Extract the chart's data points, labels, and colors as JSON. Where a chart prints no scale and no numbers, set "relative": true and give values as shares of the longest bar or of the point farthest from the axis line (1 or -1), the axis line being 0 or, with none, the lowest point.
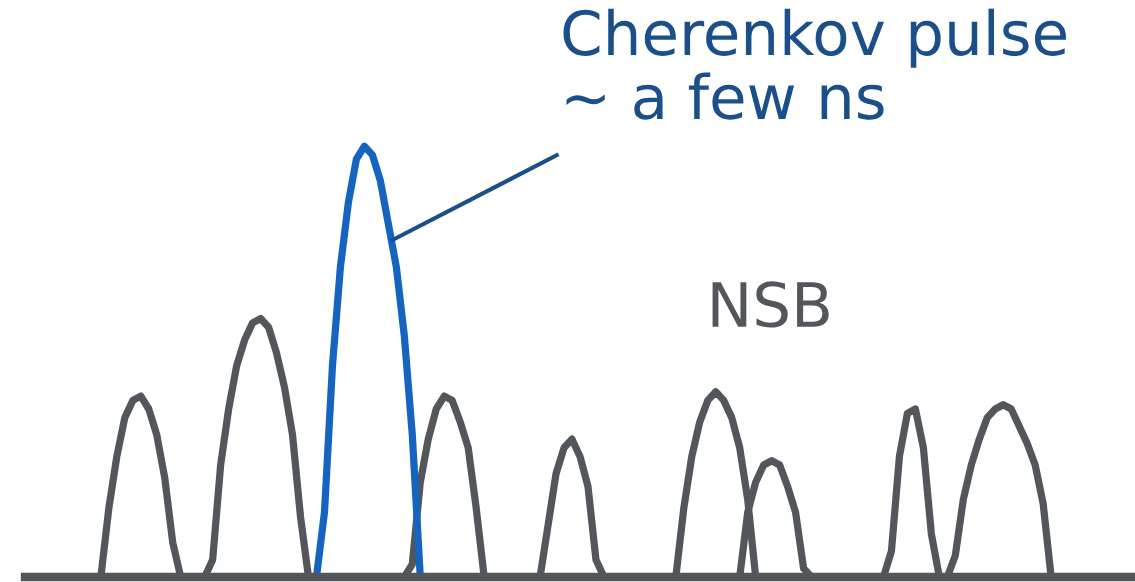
{
  "chart_data": {
    "type": "line",
    "relative": true,
    "categories": [
      null,
      null,
      null,
      null,
      null,
      null,
      null,
      null,
      null,
      null,
      null,
      null,
      null,
      null,
      null,
      null,
      null,
      null,
      null,
      null,
      null,
      null,
      null,
      null,
      null,
      null,
      null,
      null,
      null,
      null,
      null,
      null,
      null,
      null,
      null,
      null,
      null,
      null,
      null,
      null,
      null,
      null,
      null,
      null,
      null,
      null,
      null,
      null,
      null,
      null,
      null,
      null,
      null,
      null,
      null,
      null,
      null,
      null,
      null,
      null,
      null,
      null,
      null,
      null,
      null,
      null,
      null,
      null,
      null,
      null,
      null,
      null,
      null,
      null,
      null,
      null,
      null,
      null,
      null,
      null,
      null,
      null,
      null,
      null,
      null,
      null,
      null,
      null,
      null,
      null,
      null,
      null,
      null,
      null,
      null,
      null,
      null,
      null,
      null,
      null,
      null,
      null,
      null,
      null,
      null,
      null,
      null,
      null,
      null,
      null,
      null,
      null,
      null,
      null,
      null,
      null,
      null,
      null,
      null,
      null,
      null,
      null,
      null,
      null,
      null,
      null,
      null,
      null,
      null,
      null,
      null,
      null,
      null,
      null,
      null,
      null,
      null,
      null,
      null
    ],
    "series": [
      {
        "color": "#53575c",
        "values": [
          0,
          0,
          0,
          0,
          0,
          0,
          0,
          0,
          0,
          0,
          0.16,
          0.28,
          0.37,
          0.41,
          0.42,
          0.39,
          0.33,
          0.23,
          0.08,
          0,
          0,
          0,
          0,
          0.04,
          0.26,
          0.39,
          0.49,
          0.55,
          0.59,
          0.6,
          0.58,
          0.52,
          0.44,
          0.33,
          0.14,
          0,
          0,
          0,
          0,
          0,
          0,
          0,
          0,
          0,
          0,
          0,
          0,
          0,
          0.03,
          0.22,
          0.32,
          0.39,
          0.42,
          0.41,
          0.36,
          0.3,
          0.16,
          0,
          0,
          0,
          0,
          0,
          0,
          0,
          0,
          0.12,
          0.24,
          0.3,
          0.32,
          0.28,
          0.21,
          0.04,
          0,
          0,
          0,
          0,
          0,
          0,
          0,
          0,
          0,
          0,
          0.16,
          0.28,
          0.36,
          0.41,
          0.43,
          0.41,
          0.37,
          0.3,
          0.18,
          0,
          0,
          0,
          0,
          0,
          0,
          0,
          0,
          0,
          0,
          0,
          0,
          0,
          0,
          0,
          0,
          0,
          0.06,
          0.28,
          0.38,
          0.39,
          0.3,
          0.1,
          0,
          0,
          0.05,
          0.18,
          0.26,
          0.32,
          0.37,
          0.39,
          0.4,
          0.39,
          0.35,
          0.31,
          0.26,
          0.17,
          0,
          0,
          0,
          0,
          0,
          0,
          0,
          0,
          0,
          0,
          0
        ]
      },
      {
        "color": "#53575c",
        "values": [
          null,
          null,
          null,
          null,
          null,
          null,
          null,
          null,
          null,
          null,
          null,
          null,
          null,
          null,
          null,
          null,
          null,
          null,
          null,
          null,
          null,
          null,
          null,
          null,
          null,
          null,
          null,
          null,
          null,
          null,
          null,
          null,
          null,
          null,
          null,
          null,
          null,
          null,
          null,
          null,
          null,
          null,
          null,
          null,
          null,
          null,
          null,
          null,
          null,
          null,
          null,
          null,
          null,
          null,
          null,
          null,
          null,
          null,
          null,
          null,
          null,
          null,
          null,
          null,
          null,
          null,
          null,
          null,
          null,
          null,
          null,
          null,
          null,
          null,
          null,
          null,
          null,
          null,
          null,
          null,
          null,
          null,
          null,
          null,
          null,
          null,
          null,
          null,
          null,
          0,
          0.15,
          0.22,
          0.26,
          0.27,
          0.26,
          0.21,
          0.15,
          0.02,
          0,
          null,
          null,
          null,
          null,
          null,
          null,
          null,
          null,
          null,
          null,
          null,
          null,
          null,
          null,
          null,
          null,
          null,
          null,
          null,
          null,
          null,
          null,
          null,
          null,
          null,
          null,
          null,
          null,
          null,
          null,
          null,
          null,
          null,
          null,
          null,
          null,
          null,
          null,
          null,
          null
        ]
      },
      {
        "color": "#1565c0",
        "values": [
          null,
          null,
          null,
          null,
          null,
          null,
          null,
          null,
          null,
          null,
          null,
          null,
          null,
          null,
          null,
          null,
          null,
          null,
          null,
          null,
          null,
          null,
          null,
          null,
          null,
          null,
          null,
          null,
          null,
          null,
          null,
          null,
          null,
          null,
          null,
          null,
          0,
          0.15,
          0.49,
          0.72,
          0.87,
          0.97,
          1,
          0.98,
          0.92,
          0.82,
          0.72,
          0.56,
          0.33,
          0,
          null,
          null,
          null,
          null,
          null,
          null,
          null,
          null,
          null,
          null,
          null,
          null,
          null,
          null,
          null,
          null,
          null,
          null,
          null,
          null,
          null,
          null,
          null,
          null,
          null,
          null,
          null,
          null,
          null,
          null,
          null,
          null,
          null,
          null,
          null,
          null,
          null,
          null,
          null,
          null,
          null,
          null,
          null,
          null,
          null,
          null,
          null,
          null,
          null,
          null,
          null,
          null,
          null,
          null,
          null,
          null,
          null,
          null,
          null,
          null,
          null,
          null,
          null,
          null,
          null,
          null,
          null,
          null,
          null,
          null,
          null,
          null,
          null,
          null,
          null,
          null,
          null,
          null,
          null,
          null,
          null,
          null,
          null,
          null,
          null,
          null,
          null,
          null,
          null
        ]
      }
    ],
    "annotations": [
      "Cherenkov pulse\n~ a few ns",
      "NSB"
    ]
  }
}
